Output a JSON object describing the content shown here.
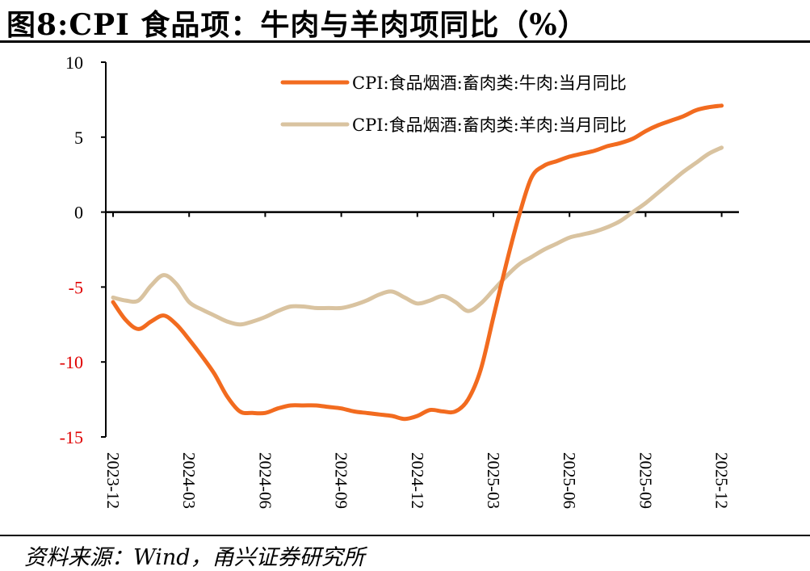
{
  "header": {
    "title": "图8:CPI 食品项：牛肉与羊肉项同比（%）"
  },
  "footer": {
    "source": "资料来源：Wind，甬兴证券研究所"
  },
  "colors": {
    "positive_tick": "#000000",
    "negative_tick": "#e00000",
    "axis": "#000000"
  },
  "chart_data": {
    "type": "line",
    "title": "图8:CPI 食品项：牛肉与羊肉项同比（%）",
    "xlabel": "",
    "ylabel": "",
    "ylim": [
      -15,
      10
    ],
    "yticks": [
      10,
      5,
      0,
      -5,
      -10,
      -15
    ],
    "ytick_labels": [
      "10",
      "5",
      "0",
      "-5",
      "-10",
      "-15"
    ],
    "x_tick_labels": [
      "2023-12",
      "2024-03",
      "2024-06",
      "2024-09",
      "2024-12",
      "2025-03",
      "2025-06",
      "2025-09",
      "2025-12"
    ],
    "x_tick_months": [
      0,
      3,
      6,
      9,
      12,
      15,
      18,
      21,
      24
    ],
    "legend_position": "top-right",
    "series": [
      {
        "name": "CPI:食品烟酒:畜肉类:牛肉:当月同比",
        "color": "#f26b1f",
        "x": [
          0,
          0.5,
          1,
          1.5,
          2,
          2.5,
          3,
          3.5,
          4,
          4.5,
          5,
          5.5,
          6,
          6.5,
          7,
          7.5,
          8,
          8.5,
          9,
          9.5,
          10,
          10.5,
          11,
          11.5,
          12,
          12.5,
          13,
          13.5,
          14,
          14.5,
          15,
          15.5,
          16,
          16.5,
          17,
          17.5,
          18,
          18.5,
          19,
          19.5,
          20,
          20.5,
          21,
          21.5,
          22,
          22.5,
          23,
          23.5,
          24
        ],
        "values": [
          -6.0,
          -7.2,
          -7.8,
          -7.3,
          -6.9,
          -7.5,
          -8.5,
          -9.6,
          -10.8,
          -12.3,
          -13.3,
          -13.4,
          -13.4,
          -13.1,
          -12.9,
          -12.9,
          -12.9,
          -13.0,
          -13.1,
          -13.3,
          -13.4,
          -13.5,
          -13.6,
          -13.8,
          -13.6,
          -13.2,
          -13.3,
          -13.3,
          -12.5,
          -10.5,
          -7.0,
          -3.5,
          -0.3,
          2.3,
          3.1,
          3.4,
          3.7,
          3.9,
          4.1,
          4.4,
          4.6,
          4.9,
          5.4,
          5.8,
          6.1,
          6.4,
          6.8,
          7.0,
          7.1
        ]
      },
      {
        "name": "CPI:食品烟酒:畜肉类:羊肉:当月同比",
        "color": "#d9c3a0",
        "x": [
          0,
          0.5,
          1,
          1.5,
          2,
          2.5,
          3,
          3.5,
          4,
          4.5,
          5,
          5.5,
          6,
          6.5,
          7,
          7.5,
          8,
          8.5,
          9,
          9.5,
          10,
          10.5,
          11,
          11.5,
          12,
          12.5,
          13,
          13.5,
          14,
          14.5,
          15,
          15.5,
          16,
          16.5,
          17,
          17.5,
          18,
          18.5,
          19,
          19.5,
          20,
          20.5,
          21,
          21.5,
          22,
          22.5,
          23,
          23.5,
          24
        ],
        "values": [
          -5.7,
          -5.9,
          -5.9,
          -4.9,
          -4.2,
          -4.8,
          -6.0,
          -6.5,
          -6.9,
          -7.3,
          -7.5,
          -7.3,
          -7.0,
          -6.6,
          -6.3,
          -6.3,
          -6.4,
          -6.4,
          -6.4,
          -6.2,
          -5.9,
          -5.5,
          -5.3,
          -5.7,
          -6.1,
          -5.9,
          -5.6,
          -6.0,
          -6.6,
          -6.1,
          -5.2,
          -4.3,
          -3.5,
          -3.0,
          -2.5,
          -2.1,
          -1.7,
          -1.5,
          -1.3,
          -1.0,
          -0.6,
          0.0,
          0.6,
          1.3,
          2.0,
          2.7,
          3.3,
          3.9,
          4.3
        ]
      }
    ]
  }
}
